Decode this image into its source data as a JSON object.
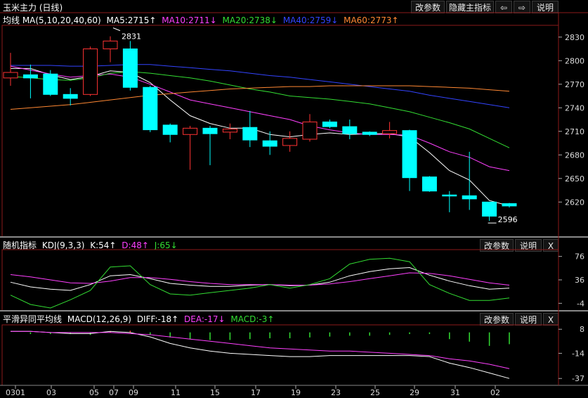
{
  "header": {
    "title": "玉米主力 (日线)",
    "buttons": [
      "改参数",
      "隐藏主指标",
      "⇦",
      "⇨",
      "说明"
    ]
  },
  "main_panel": {
    "legend": [
      {
        "text": "均线 MA(5,10,20,40,60)",
        "color": "#ffffff"
      },
      {
        "text": "MA5:2715↑",
        "color": "#ffffff"
      },
      {
        "text": "MA10:2711↓",
        "color": "#ff40ff"
      },
      {
        "text": "MA20:2738↓",
        "color": "#33dd33"
      },
      {
        "text": "MA40:2759↓",
        "color": "#3344ff"
      },
      {
        "text": "MA60:2773↑",
        "color": "#ff8833"
      }
    ],
    "high_label": "2831",
    "low_label": "2596"
  },
  "kdj_panel": {
    "legend": [
      {
        "text": "随机指标",
        "color": "#ffffff"
      },
      {
        "text": "KDJ(9,3,3)",
        "color": "#ffffff"
      },
      {
        "text": "K:54↑",
        "color": "#ffffff"
      },
      {
        "text": "D:48↑",
        "color": "#ff40ff"
      },
      {
        "text": "J:65↓",
        "color": "#33dd33"
      }
    ],
    "buttons": [
      "改参数",
      "说明",
      "X"
    ]
  },
  "macd_panel": {
    "legend": [
      {
        "text": "平滑异同平均线",
        "color": "#ffffff"
      },
      {
        "text": "MACD(12,26,9)",
        "color": "#ffffff"
      },
      {
        "text": "DIFF:-18↑",
        "color": "#ffffff"
      },
      {
        "text": "DEA:-17↓",
        "color": "#ff40ff"
      },
      {
        "text": "MACD:-3↑",
        "color": "#33dd33"
      }
    ],
    "buttons": [
      "改参数",
      "说明",
      "X"
    ]
  },
  "colors": {
    "up": "#ff3333",
    "down": "#00ffff",
    "ma5": "#ffffff",
    "ma10": "#ff40ff",
    "ma20": "#33dd33",
    "ma40": "#3344ff",
    "ma60": "#ff8833",
    "grid": "#8b1a1a",
    "axis_text": "#dddddd"
  },
  "chart_data": [
    {
      "type": "candlestick",
      "title": "玉米主力 (日线)",
      "ylim": [
        2580,
        2845
      ],
      "y_ticks": [
        2830,
        2800,
        2770,
        2740,
        2710,
        2680,
        2650,
        2620
      ],
      "x_ticks": [
        "0301",
        "03",
        "05",
        "07",
        "09",
        "11",
        "15",
        "17",
        "19",
        "23",
        "25",
        "29",
        "31",
        "02"
      ],
      "candles": [
        {
          "o": 2778,
          "c": 2785,
          "h": 2810,
          "l": 2768
        },
        {
          "o": 2782,
          "c": 2778,
          "h": 2795,
          "l": 2752
        },
        {
          "o": 2783,
          "c": 2757,
          "h": 2788,
          "l": 2755
        },
        {
          "o": 2757,
          "c": 2752,
          "h": 2765,
          "l": 2743
        },
        {
          "o": 2757,
          "c": 2815,
          "h": 2818,
          "l": 2755
        },
        {
          "o": 2815,
          "c": 2825,
          "h": 2831,
          "l": 2798
        },
        {
          "o": 2815,
          "c": 2766,
          "h": 2825,
          "l": 2762
        },
        {
          "o": 2766,
          "c": 2712,
          "h": 2768,
          "l": 2709
        },
        {
          "o": 2718,
          "c": 2706,
          "h": 2720,
          "l": 2696
        },
        {
          "o": 2706,
          "c": 2714,
          "h": 2717,
          "l": 2661
        },
        {
          "o": 2714,
          "c": 2707,
          "h": 2717,
          "l": 2667
        },
        {
          "o": 2709,
          "c": 2713,
          "h": 2720,
          "l": 2700
        },
        {
          "o": 2715,
          "c": 2699,
          "h": 2736,
          "l": 2690
        },
        {
          "o": 2698,
          "c": 2691,
          "h": 2710,
          "l": 2680
        },
        {
          "o": 2692,
          "c": 2701,
          "h": 2710,
          "l": 2684
        },
        {
          "o": 2700,
          "c": 2722,
          "h": 2732,
          "l": 2697
        },
        {
          "o": 2722,
          "c": 2716,
          "h": 2725,
          "l": 2714
        },
        {
          "o": 2716,
          "c": 2707,
          "h": 2725,
          "l": 2700
        },
        {
          "o": 2709,
          "c": 2706,
          "h": 2710,
          "l": 2704
        },
        {
          "o": 2707,
          "c": 2711,
          "h": 2722,
          "l": 2701
        },
        {
          "o": 2711,
          "c": 2651,
          "h": 2712,
          "l": 2634
        },
        {
          "o": 2652,
          "c": 2634,
          "h": 2653,
          "l": 2633
        },
        {
          "o": 2629,
          "c": 2628,
          "h": 2634,
          "l": 2607
        },
        {
          "o": 2628,
          "c": 2624,
          "h": 2684,
          "l": 2610
        },
        {
          "o": 2620,
          "c": 2602,
          "h": 2620,
          "l": 2596
        },
        {
          "o": 2618,
          "c": 2615,
          "h": 2619,
          "l": 2613
        }
      ],
      "series": [
        {
          "name": "MA5",
          "values": [
            2790,
            2790,
            2782,
            2776,
            2780,
            2787,
            2785,
            2772,
            2750,
            2730,
            2720,
            2714,
            2714,
            2706,
            2703,
            2706,
            2708,
            2706,
            2707,
            2707,
            2703,
            2683,
            2660,
            2648,
            2622,
            2615
          ]
        },
        {
          "name": "MA10",
          "values": [
            2793,
            2788,
            2783,
            2779,
            2781,
            2783,
            2779,
            2770,
            2760,
            2750,
            2745,
            2740,
            2735,
            2730,
            2725,
            2717,
            2712,
            2708,
            2706,
            2706,
            2705,
            2695,
            2684,
            2677,
            2665,
            2660
          ]
        },
        {
          "name": "MA20",
          "values": [
            2780,
            2778,
            2776,
            2775,
            2778,
            2784,
            2786,
            2784,
            2781,
            2778,
            2774,
            2769,
            2764,
            2760,
            2755,
            2753,
            2751,
            2748,
            2745,
            2740,
            2735,
            2728,
            2721,
            2713,
            2701,
            2689
          ]
        },
        {
          "name": "MA40",
          "values": [
            2794,
            2794,
            2794,
            2793,
            2793,
            2794,
            2795,
            2795,
            2793,
            2791,
            2789,
            2787,
            2784,
            2781,
            2779,
            2776,
            2773,
            2770,
            2767,
            2764,
            2761,
            2756,
            2752,
            2748,
            2744,
            2740
          ]
        },
        {
          "name": "MA60",
          "values": [
            2738,
            2740,
            2742,
            2744,
            2747,
            2750,
            2753,
            2756,
            2758,
            2760,
            2762,
            2764,
            2765,
            2766,
            2767,
            2767,
            2768,
            2768,
            2768,
            2768,
            2768,
            2767,
            2766,
            2765,
            2763,
            2761
          ]
        }
      ]
    },
    {
      "type": "line",
      "title": "随机指标 KDJ(9,3,3)",
      "ylim": [
        -12,
        84
      ],
      "y_ticks": [
        76,
        36,
        -4
      ],
      "series": [
        {
          "name": "K",
          "values": [
            32,
            24,
            20,
            18,
            28,
            43,
            45,
            38,
            30,
            27,
            25,
            25,
            27,
            28,
            26,
            27,
            32,
            43,
            50,
            55,
            57,
            44,
            34,
            26,
            20,
            22
          ]
        },
        {
          "name": "D",
          "values": [
            45,
            41,
            36,
            31,
            30,
            34,
            40,
            40,
            37,
            33,
            30,
            28,
            28,
            28,
            27,
            27,
            29,
            33,
            38,
            43,
            48,
            47,
            43,
            37,
            31,
            27
          ]
        },
        {
          "name": "J",
          "values": [
            10,
            -6,
            -12,
            2,
            18,
            58,
            60,
            28,
            12,
            10,
            14,
            18,
            22,
            28,
            22,
            28,
            38,
            63,
            71,
            73,
            67,
            28,
            13,
            1,
            1,
            5
          ]
        }
      ]
    },
    {
      "type": "bar+line",
      "title": "平滑异同平均线 MACD(12,26,9)",
      "ylim": [
        -42,
        12
      ],
      "y_ticks": [
        8,
        -14,
        -37
      ],
      "series": [
        {
          "name": "DIFF",
          "values": [
            6,
            6,
            5,
            4,
            4,
            6,
            5,
            1,
            -5,
            -9,
            -12,
            -14,
            -15,
            -16,
            -17,
            -17,
            -16,
            -16,
            -16,
            -16,
            -16,
            -17,
            -23,
            -27,
            -32,
            -37
          ]
        },
        {
          "name": "DEA",
          "values": [
            6,
            6,
            5,
            5,
            5,
            5,
            4,
            3,
            1,
            -1,
            -3,
            -5,
            -7,
            -9,
            -10,
            -11,
            -12,
            -12,
            -13,
            -14,
            -15,
            -16,
            -19,
            -21,
            -24,
            -28
          ]
        },
        {
          "name": "MACD",
          "values": [
            0,
            -2,
            -2,
            -2,
            -3,
            1,
            2,
            -3,
            -6,
            -8,
            -9,
            -9,
            -8,
            -7,
            -7,
            -6,
            -5,
            -4,
            -4,
            -3,
            -2,
            -2,
            -8,
            -11,
            -16,
            -14
          ]
        }
      ]
    }
  ]
}
